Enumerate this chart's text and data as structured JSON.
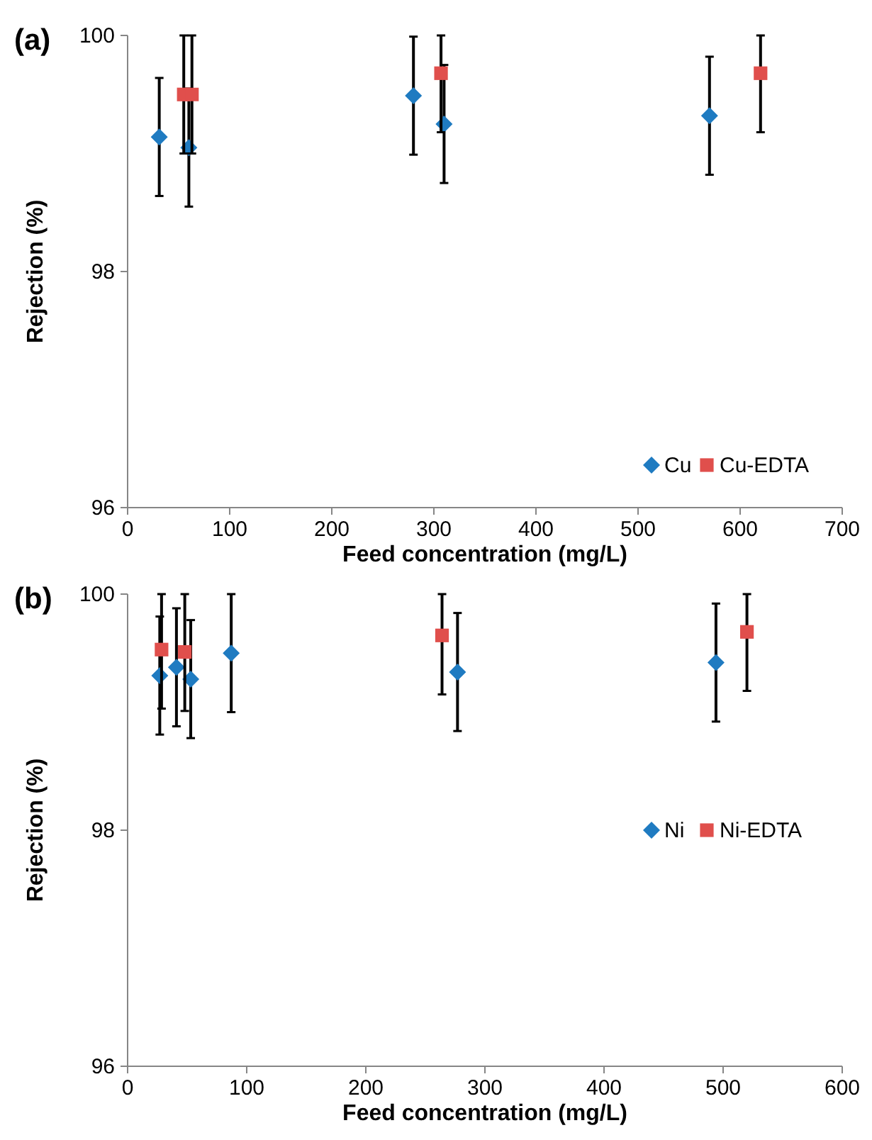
{
  "chart_data": [
    {
      "type": "scatter",
      "title": "(a)",
      "xlabel": "Feed concentration (mg/L)",
      "ylabel": "Rejection (%)",
      "xlim": [
        0,
        700
      ],
      "xticks": [
        0,
        100,
        200,
        300,
        400,
        500,
        600,
        700
      ],
      "ylim": [
        96,
        100
      ],
      "yticks": [
        96,
        98,
        100
      ],
      "grid": false,
      "legend": "bottom right",
      "series": [
        {
          "name": "Cu",
          "color": "#1f7bc1",
          "marker": "diamond",
          "x": [
            31,
            60,
            280,
            310,
            570
          ],
          "values": [
            99.14,
            99.05,
            99.49,
            99.25,
            99.32
          ],
          "errors": [
            0.5,
            0.5,
            0.5,
            0.5,
            0.5
          ]
        },
        {
          "name": "Cu-EDTA",
          "color": "#e04f4c",
          "marker": "square",
          "x": [
            55,
            63,
            307,
            620
          ],
          "values": [
            99.5,
            99.5,
            99.68,
            99.68
          ],
          "errors": [
            [
              99.0,
              100
            ],
            [
              99.0,
              100
            ],
            [
              99.18,
              100
            ],
            [
              99.18,
              100
            ]
          ]
        }
      ]
    },
    {
      "type": "scatter",
      "title": "(b)",
      "xlabel": "Feed concentration (mg/L)",
      "ylabel": "Rejection (%)",
      "xlim": [
        0,
        600
      ],
      "xticks": [
        0,
        100,
        200,
        300,
        400,
        500,
        600
      ],
      "ylim": [
        96,
        100
      ],
      "yticks": [
        96,
        98,
        100
      ],
      "grid": false,
      "legend": "right",
      "series": [
        {
          "name": "Ni",
          "color": "#1f7bc1",
          "marker": "diamond",
          "x": [
            27,
            41,
            53,
            87,
            277,
            494
          ],
          "values": [
            99.31,
            99.38,
            99.28,
            99.5,
            99.34,
            99.42
          ],
          "errors": [
            0.5,
            0.5,
            0.5,
            0.5,
            0.5,
            0.5
          ]
        },
        {
          "name": "Ni-EDTA",
          "color": "#e04f4c",
          "marker": "square",
          "x": [
            28.5,
            48,
            264,
            520
          ],
          "values": [
            99.53,
            99.51,
            99.65,
            99.68
          ],
          "errors": [
            [
              99.03,
              100
            ],
            [
              99.01,
              100
            ],
            [
              99.15,
              100
            ],
            [
              99.18,
              100
            ]
          ]
        }
      ]
    }
  ]
}
